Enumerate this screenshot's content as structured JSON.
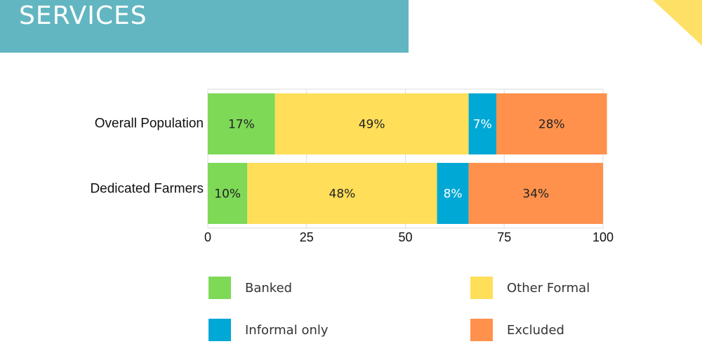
{
  "header": {
    "title": "SERVICES"
  },
  "colors": {
    "banner": "#62b6c1",
    "accent": "#ffe066",
    "banked": "#7ed957",
    "other_formal": "#ffde59",
    "informal_only": "#00a8d6",
    "excluded": "#ff914d"
  },
  "chart_data": {
    "type": "bar",
    "orientation": "horizontal",
    "stacked": true,
    "categories": [
      "Overall Population",
      "Dedicated Farmers"
    ],
    "series": [
      {
        "name": "Banked",
        "values": [
          17,
          10
        ],
        "labels": [
          "17%",
          "10%"
        ],
        "color": "#7ed957",
        "label_color": "#222222"
      },
      {
        "name": "Other Formal",
        "values": [
          49,
          48
        ],
        "labels": [
          "49%",
          "48%"
        ],
        "color": "#ffde59",
        "label_color": "#222222"
      },
      {
        "name": "Informal only",
        "values": [
          7,
          8
        ],
        "labels": [
          "7%",
          "8%"
        ],
        "color": "#00a8d6",
        "label_color": "#ffffff"
      },
      {
        "name": "Excluded",
        "values": [
          28,
          34
        ],
        "labels": [
          "28%",
          "34%"
        ],
        "color": "#ff914d",
        "label_color": "#222222"
      }
    ],
    "xlim": [
      0,
      100
    ],
    "xticks": [
      0,
      25,
      50,
      75,
      100
    ],
    "xtick_labels": [
      "0",
      "25",
      "50",
      "75",
      "100"
    ],
    "grid": true,
    "legend_position": "bottom"
  },
  "legend": [
    {
      "label": "Banked",
      "color": "#7ed957"
    },
    {
      "label": "Other Formal",
      "color": "#ffde59"
    },
    {
      "label": "Informal only",
      "color": "#00a8d6"
    },
    {
      "label": "Excluded",
      "color": "#ff914d"
    }
  ]
}
